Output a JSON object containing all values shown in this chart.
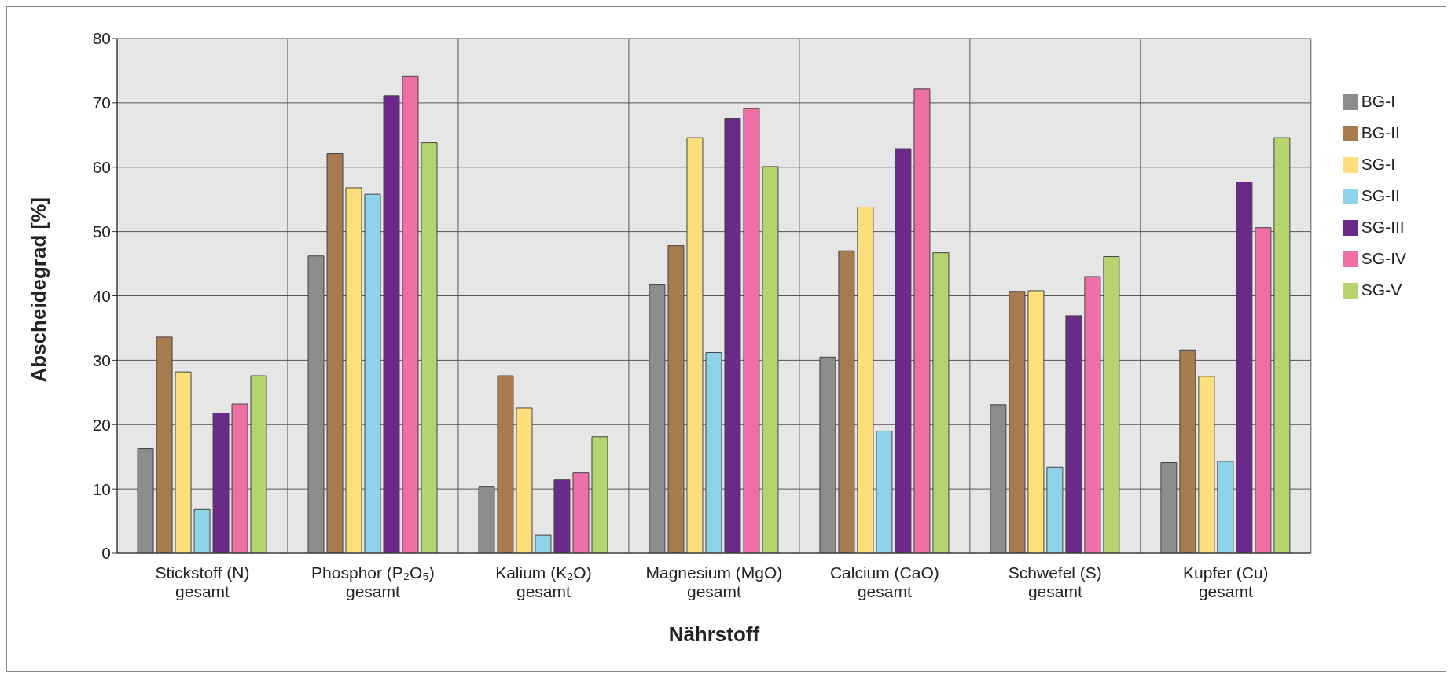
{
  "chart_data": {
    "type": "bar",
    "xlabel": "Nährstoff",
    "ylabel": "Abscheidegrad [%]",
    "categories": [
      "Stickstoff (N)\ngesamt",
      "Phosphor (P₂O₅)\ngesamt",
      "Kalium (K₂O)\ngesamt",
      "Magnesium (MgO)\ngesamt",
      "Calcium (CaO)\ngesamt",
      "Schwefel (S)\ngesamt",
      "Kupfer (Cu)\ngesamt"
    ],
    "series": [
      {
        "name": "BG-I",
        "color": "#8c8c8c",
        "values": [
          16.3,
          46.2,
          10.3,
          41.7,
          30.5,
          23.1,
          14.1
        ]
      },
      {
        "name": "BG-II",
        "color": "#a87a4f",
        "values": [
          33.6,
          62.1,
          27.6,
          47.8,
          47.0,
          40.7,
          31.6
        ]
      },
      {
        "name": "SG-I",
        "color": "#fde07c",
        "values": [
          28.2,
          56.8,
          22.6,
          64.6,
          53.8,
          40.8,
          27.5
        ]
      },
      {
        "name": "SG-II",
        "color": "#8fd3ea",
        "values": [
          6.8,
          55.8,
          2.8,
          31.2,
          19.0,
          13.4,
          14.3
        ]
      },
      {
        "name": "SG-III",
        "color": "#6b2a8a",
        "values": [
          21.8,
          71.1,
          11.4,
          67.6,
          62.9,
          36.9,
          57.7
        ]
      },
      {
        "name": "SG-IV",
        "color": "#ee6fa6",
        "values": [
          23.2,
          74.1,
          12.5,
          69.1,
          72.2,
          43.0,
          50.6
        ]
      },
      {
        "name": "SG-V",
        "color": "#b5d36e",
        "values": [
          27.6,
          63.8,
          18.1,
          60.1,
          46.7,
          46.1,
          64.6
        ]
      }
    ],
    "ylim": [
      0,
      80
    ],
    "yticks": [
      0,
      10,
      20,
      30,
      40,
      50,
      60,
      70,
      80
    ],
    "grid": true,
    "legend": "right"
  }
}
